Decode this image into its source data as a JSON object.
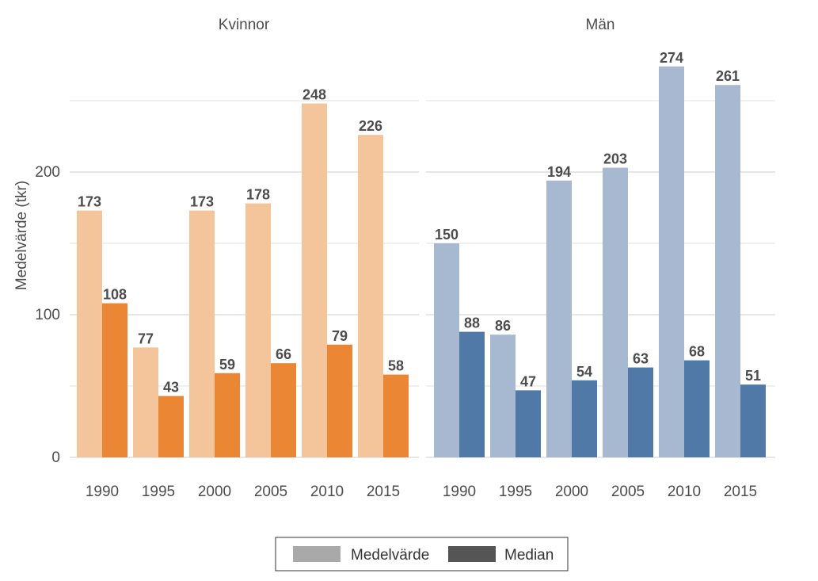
{
  "chart_data": {
    "type": "bar",
    "ylabel": "Medelvärde (tkr)",
    "xlabel": "",
    "ylim": [
      0,
      290
    ],
    "yticks": [
      0,
      100,
      200
    ],
    "categories": [
      "1990",
      "1995",
      "2000",
      "2005",
      "2010",
      "2015"
    ],
    "legend": {
      "placement": "bottom",
      "entries": [
        {
          "name": "Medelvärde",
          "color": "#a9a9a9"
        },
        {
          "name": "Median",
          "color": "#555555"
        }
      ]
    },
    "panels": [
      {
        "title": "Kvinnor",
        "colors": {
          "Medelvärde": "#f4c49a",
          "Median": "#ea8634"
        },
        "series": [
          {
            "name": "Medelvärde",
            "values": [
              173,
              77,
              173,
              178,
              248,
              226
            ]
          },
          {
            "name": "Median",
            "values": [
              108,
              43,
              59,
              66,
              79,
              58
            ]
          }
        ]
      },
      {
        "title": "Män",
        "colors": {
          "Medelvärde": "#a6b9d1",
          "Median": "#5179a7"
        },
        "series": [
          {
            "name": "Medelvärde",
            "values": [
              150,
              86,
              194,
              203,
              274,
              261
            ]
          },
          {
            "name": "Median",
            "values": [
              88,
              47,
              54,
              63,
              68,
              51
            ]
          }
        ]
      }
    ]
  }
}
